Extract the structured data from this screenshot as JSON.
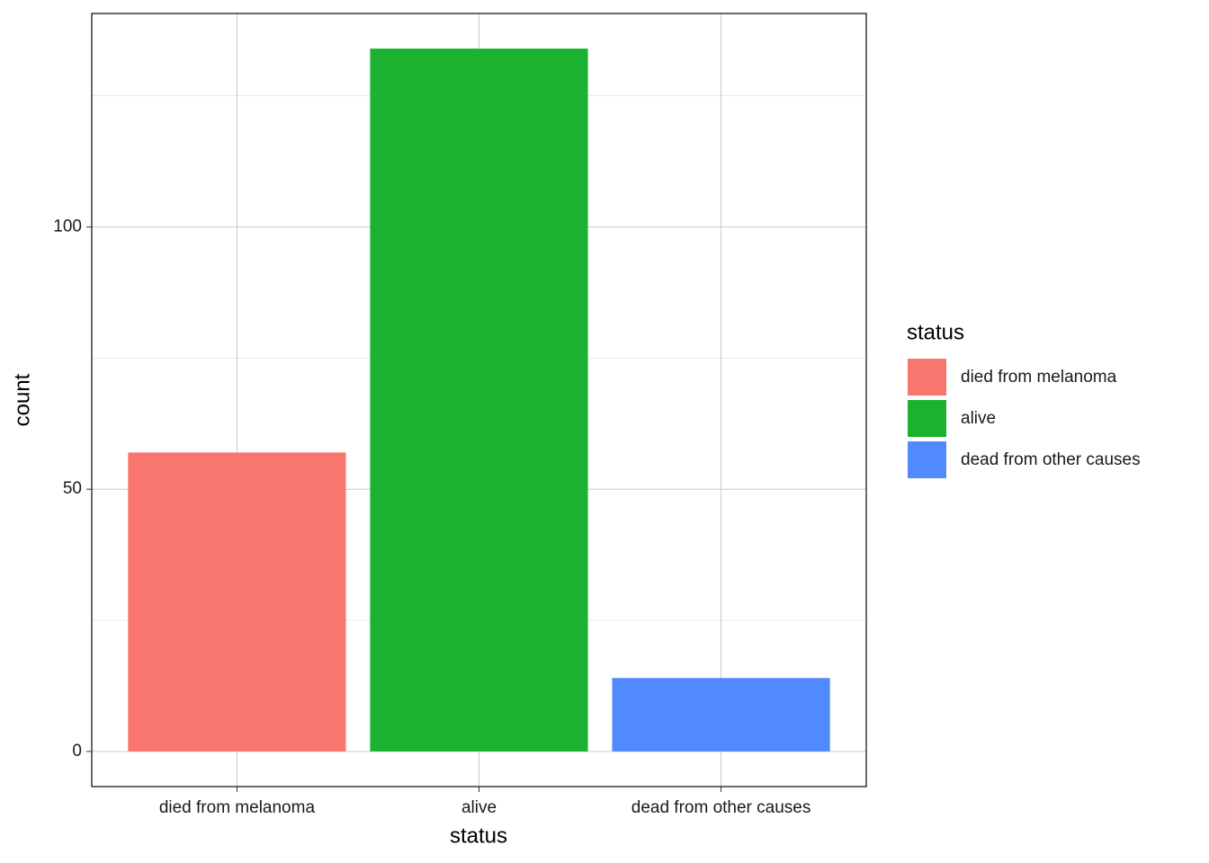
{
  "chart_data": {
    "type": "bar",
    "x_label": "status",
    "y_label": "count",
    "legend_title": "status",
    "categories": [
      "died from melanoma",
      "alive",
      "dead from other causes"
    ],
    "values": [
      57,
      134,
      14
    ],
    "colors": [
      "#f8766d",
      "#1ab22f",
      "#5189ff"
    ],
    "ylim": [
      -6.7,
      140.7
    ],
    "yticks": [
      0,
      50,
      100
    ],
    "y_minor_grid": [
      25,
      75,
      125
    ],
    "grid": true,
    "legend": "right"
  }
}
